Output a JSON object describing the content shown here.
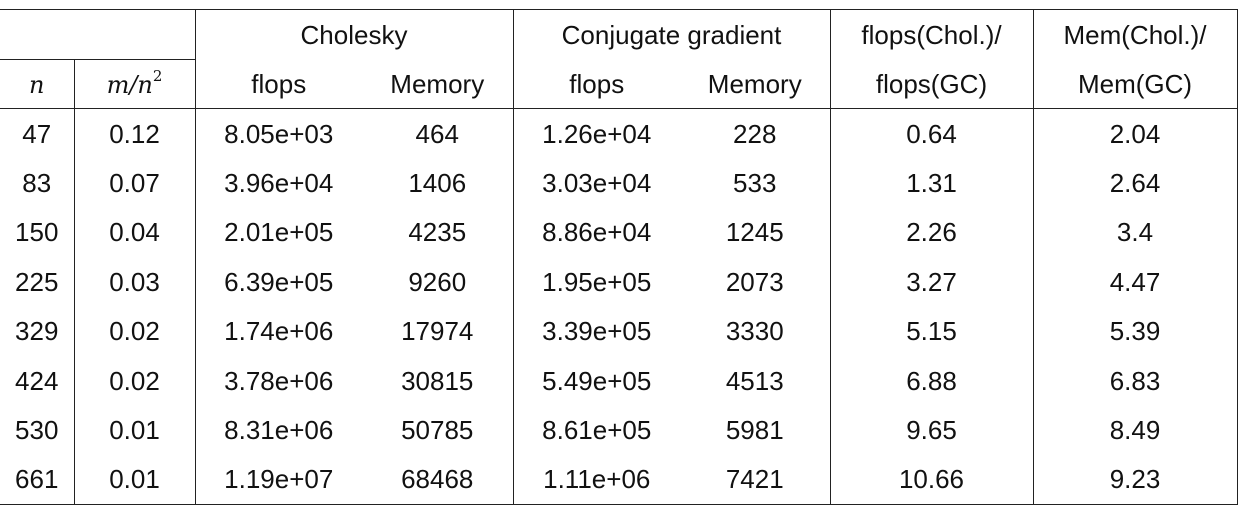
{
  "table": {
    "group_headers": {
      "cholesky": "Cholesky",
      "cg": "Conjugate gradient",
      "ratio_flops_line1": "flops(Chol.)/",
      "ratio_mem_line1": "Mem(Chol.)/"
    },
    "sub_headers": {
      "n": "n",
      "m_over_n2": "m/n",
      "m_over_n2_exp": "2",
      "chol_flops": "flops",
      "chol_memory": "Memory",
      "cg_flops": "flops",
      "cg_memory": "Memory",
      "ratio_flops_line2": "flops(GC)",
      "ratio_mem_line2": "Mem(GC)"
    },
    "rows": [
      [
        "47",
        "0.12",
        "8.05e+03",
        "464",
        "1.26e+04",
        "228",
        "0.64",
        "2.04"
      ],
      [
        "83",
        "0.07",
        "3.96e+04",
        "1406",
        "3.03e+04",
        "533",
        "1.31",
        "2.64"
      ],
      [
        "150",
        "0.04",
        "2.01e+05",
        "4235",
        "8.86e+04",
        "1245",
        "2.26",
        "3.4"
      ],
      [
        "225",
        "0.03",
        "6.39e+05",
        "9260",
        "1.95e+05",
        "2073",
        "3.27",
        "4.47"
      ],
      [
        "329",
        "0.02",
        "1.74e+06",
        "17974",
        "3.39e+05",
        "3330",
        "5.15",
        "5.39"
      ],
      [
        "424",
        "0.02",
        "3.78e+06",
        "30815",
        "5.49e+05",
        "4513",
        "6.88",
        "6.83"
      ],
      [
        "530",
        "0.01",
        "8.31e+06",
        "50785",
        "8.61e+05",
        "5981",
        "9.65",
        "8.49"
      ],
      [
        "661",
        "0.01",
        "1.19e+07",
        "68468",
        "1.11e+06",
        "7421",
        "10.66",
        "9.23"
      ]
    ]
  }
}
